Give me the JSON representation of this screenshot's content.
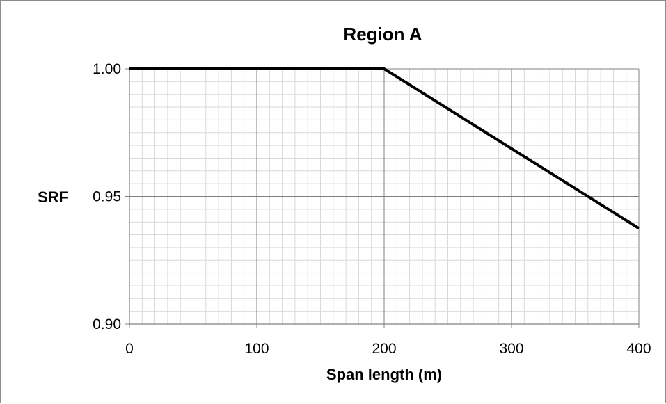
{
  "chart_data": {
    "type": "line",
    "title": "Region A",
    "xlabel": "Span length (m)",
    "ylabel": "SRF",
    "xlim": [
      0,
      400
    ],
    "ylim": [
      0.9,
      1.0
    ],
    "x_ticks": [
      0,
      100,
      200,
      300,
      400
    ],
    "x_tick_labels": [
      "0",
      "100",
      "200",
      "300",
      "400"
    ],
    "y_ticks": [
      0.9,
      0.95,
      1.0
    ],
    "y_tick_labels": [
      "0.90",
      "0.95",
      "1.00"
    ],
    "x_minor_step": 10,
    "y_minor_step": 0.005,
    "grid": true,
    "legend": false,
    "series": [
      {
        "x": [
          0,
          200,
          400
        ],
        "y": [
          1.0,
          1.0,
          0.9375
        ],
        "color": "#000000"
      }
    ]
  }
}
